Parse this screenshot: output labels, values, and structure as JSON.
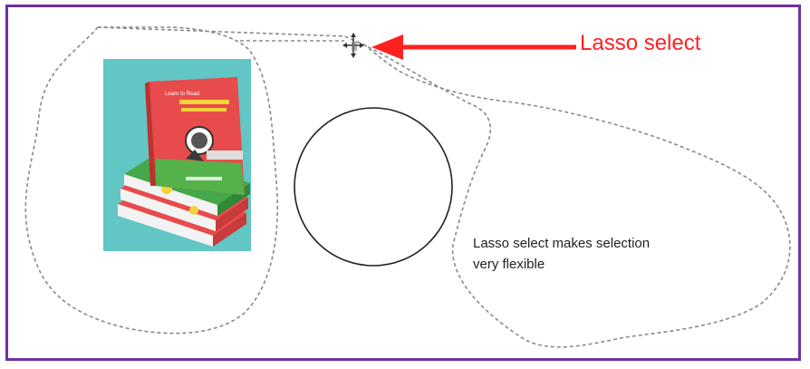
{
  "callout": {
    "label": "Lasso select",
    "color": "#ff2020",
    "arrow_icon": "left-arrow-icon"
  },
  "note": {
    "line1": "Lasso select makes selection",
    "line2": "very flexible"
  },
  "canvas": {
    "border_color": "#7030a0"
  },
  "image": {
    "icon": "book-stack-image",
    "cover_title_line1": "Learn to Read",
    "background_color": "#62c6c4"
  },
  "shapes": {
    "circle_icon": "circle-shape",
    "cursor_icon": "move-cursor-icon"
  }
}
